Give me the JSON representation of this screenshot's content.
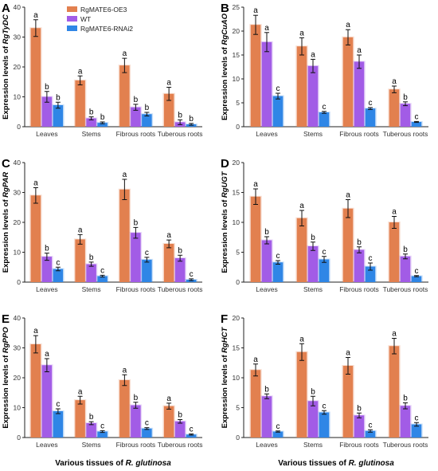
{
  "colors": {
    "oe3": "#E2804F",
    "wt": "#A25CE6",
    "rnai": "#2F86E6",
    "error": "#111111",
    "axis": "#222222",
    "tick_text": "#333333"
  },
  "legend": [
    "RgMATE6-OE3",
    "WT",
    "RgMATE6-RNAi2"
  ],
  "x_axis_caption": {
    "prefix": "Various tissues of ",
    "species": "R. glutinosa"
  },
  "chart_data": [
    {
      "type": "bar",
      "panel_label": "A",
      "ylabel_prefix": "Expression levels of ",
      "ylabel_gene": "RgTyDC",
      "categories": [
        "Leaves",
        "Stems",
        "Fibrous roots",
        "Tuberous roots"
      ],
      "ylim": [
        0,
        40
      ],
      "yticks": [
        0,
        10,
        20,
        30,
        40
      ],
      "series": [
        {
          "name": "RgMATE6-OE3",
          "values": [
            33,
            15.5,
            20.5,
            11
          ],
          "errors": [
            2.8,
            1.5,
            2.4,
            2.2
          ],
          "letters": [
            "a",
            "a",
            "a",
            "a"
          ]
        },
        {
          "name": "WT",
          "values": [
            10,
            2.8,
            6.5,
            1.5
          ],
          "errors": [
            1.8,
            0.5,
            1.0,
            0.8
          ],
          "letters": [
            "b",
            "b",
            "b",
            "b"
          ]
        },
        {
          "name": "RgMATE6-RNAi2",
          "values": [
            7.2,
            1.3,
            4.2,
            0.8
          ],
          "errors": [
            1.0,
            0.3,
            0.6,
            0.3
          ],
          "letters": [
            "b",
            "b",
            "b",
            "b"
          ]
        }
      ]
    },
    {
      "type": "bar",
      "panel_label": "B",
      "ylabel_prefix": "Expression levels of ",
      "ylabel_gene": "RgCuAO",
      "categories": [
        "Leaves",
        "Stems",
        "Fibrous roots",
        "Tuberous roots"
      ],
      "ylim": [
        0,
        25
      ],
      "yticks": [
        0,
        5,
        10,
        15,
        20,
        25
      ],
      "series": [
        {
          "name": "RgMATE6-OE3",
          "values": [
            21.3,
            16.8,
            18.7,
            7.8
          ],
          "errors": [
            2.0,
            1.8,
            1.6,
            0.7
          ],
          "letters": [
            "a",
            "a",
            "a",
            "a"
          ]
        },
        {
          "name": "WT",
          "values": [
            17.7,
            12.7,
            13.6,
            4.8
          ],
          "errors": [
            2.0,
            1.4,
            1.4,
            0.4
          ],
          "letters": [
            "a",
            "a",
            "a",
            "b"
          ]
        },
        {
          "name": "RgMATE6-RNAi2",
          "values": [
            6.4,
            3.0,
            3.8,
            1.0
          ],
          "errors": [
            0.6,
            0.2,
            0.2,
            0.1
          ],
          "letters": [
            "c",
            "c",
            "c",
            "c"
          ]
        }
      ]
    },
    {
      "type": "bar",
      "panel_label": "C",
      "ylabel_prefix": "Expression levels of ",
      "ylabel_gene": "RgPAR",
      "categories": [
        "Leaves",
        "Stems",
        "Fibrous roots",
        "Tuberous roots"
      ],
      "ylim": [
        0,
        40
      ],
      "yticks": [
        0,
        10,
        20,
        30,
        40
      ],
      "series": [
        {
          "name": "RgMATE6-OE3",
          "values": [
            29,
            14.3,
            31,
            12.8
          ],
          "errors": [
            2.6,
            1.6,
            3.4,
            1.3
          ],
          "letters": [
            "a",
            "a",
            "a",
            "a"
          ]
        },
        {
          "name": "WT",
          "values": [
            8.5,
            6.0,
            16.5,
            8.0
          ],
          "errors": [
            1.2,
            0.7,
            1.8,
            1.0
          ],
          "letters": [
            "b",
            "b",
            "b",
            "b"
          ]
        },
        {
          "name": "RgMATE6-RNAi2",
          "values": [
            4.4,
            2.0,
            7.5,
            0.8
          ],
          "errors": [
            0.6,
            0.3,
            0.8,
            0.3
          ],
          "letters": [
            "c",
            "c",
            "c",
            "c"
          ]
        }
      ]
    },
    {
      "type": "bar",
      "panel_label": "D",
      "ylabel_prefix": "Expression levels of ",
      "ylabel_gene": "RgUGT",
      "categories": [
        "Leaves",
        "Stems",
        "Fibrous roots",
        "Tuberous roots"
      ],
      "ylim": [
        0,
        20
      ],
      "yticks": [
        0,
        5,
        10,
        15,
        20
      ],
      "series": [
        {
          "name": "RgMATE6-OE3",
          "values": [
            14.3,
            10.7,
            12.3,
            10.0
          ],
          "errors": [
            1.3,
            1.3,
            1.5,
            1.0
          ],
          "letters": [
            "a",
            "a",
            "a",
            "a"
          ]
        },
        {
          "name": "WT",
          "values": [
            7.0,
            6.0,
            5.4,
            4.3
          ],
          "errors": [
            0.6,
            0.7,
            0.5,
            0.4
          ],
          "letters": [
            "b",
            "b",
            "b",
            "b"
          ]
        },
        {
          "name": "RgMATE6-RNAi2",
          "values": [
            3.3,
            3.8,
            2.6,
            1.0
          ],
          "errors": [
            0.3,
            0.5,
            0.6,
            0.1
          ],
          "letters": [
            "c",
            "c",
            "c",
            "c"
          ]
        }
      ]
    },
    {
      "type": "bar",
      "panel_label": "E",
      "ylabel_prefix": "Expression levels of ",
      "ylabel_gene": "RgPPO",
      "categories": [
        "Leaves",
        "Stems",
        "Fibrous roots",
        "Tuberous roots"
      ],
      "ylim": [
        0,
        40
      ],
      "yticks": [
        0,
        10,
        20,
        30,
        40
      ],
      "series": [
        {
          "name": "RgMATE6-OE3",
          "values": [
            31.2,
            12.5,
            19.2,
            10.5
          ],
          "errors": [
            2.9,
            1.3,
            1.8,
            1.0
          ],
          "letters": [
            "a",
            "a",
            "a",
            "a"
          ]
        },
        {
          "name": "WT",
          "values": [
            24.2,
            4.8,
            10.8,
            5.4
          ],
          "errors": [
            2.2,
            0.5,
            1.0,
            0.6
          ],
          "letters": [
            "a",
            "b",
            "b",
            "b"
          ]
        },
        {
          "name": "RgMATE6-RNAi2",
          "values": [
            8.8,
            2.0,
            3.0,
            1.0
          ],
          "errors": [
            0.8,
            0.3,
            0.3,
            0.2
          ],
          "letters": [
            "c",
            "c",
            "c",
            "c"
          ]
        }
      ]
    },
    {
      "type": "bar",
      "panel_label": "F",
      "ylabel_prefix": "Expression levels of ",
      "ylabel_gene": "RgHCT",
      "categories": [
        "Leaves",
        "Stems",
        "Fibrous roots",
        "Tuberous roots"
      ],
      "ylim": [
        0,
        20
      ],
      "yticks": [
        0,
        5,
        10,
        15,
        20
      ],
      "series": [
        {
          "name": "RgMATE6-OE3",
          "values": [
            11.3,
            14.3,
            12.0,
            15.3
          ],
          "errors": [
            1.0,
            1.4,
            1.4,
            1.3
          ],
          "letters": [
            "a",
            "a",
            "a",
            "a"
          ]
        },
        {
          "name": "WT",
          "values": [
            6.9,
            6.1,
            3.7,
            5.3
          ],
          "errors": [
            0.4,
            0.8,
            0.4,
            0.5
          ],
          "letters": [
            "b",
            "b",
            "b",
            "b"
          ]
        },
        {
          "name": "RgMATE6-RNAi2",
          "values": [
            1.0,
            4.2,
            1.1,
            2.2
          ],
          "errors": [
            0.1,
            0.3,
            0.2,
            0.3
          ],
          "letters": [
            "c",
            "c",
            "c",
            "c"
          ]
        }
      ]
    }
  ]
}
